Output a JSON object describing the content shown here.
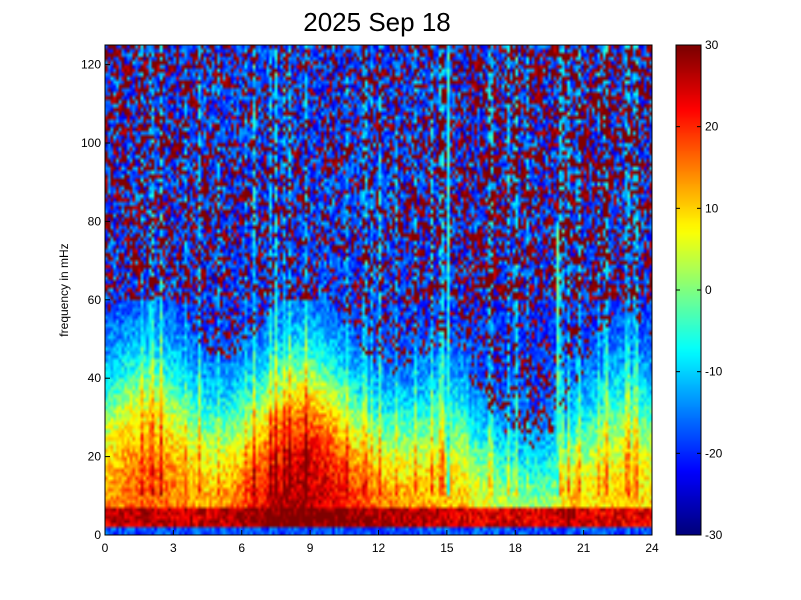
{
  "chart_data": {
    "type": "heatmap",
    "title": "2025 Sep 18",
    "xlabel": "",
    "ylabel": "frequency in mHz",
    "xlim": [
      0,
      24
    ],
    "ylim": [
      0,
      125
    ],
    "x_ticks": [
      "0",
      "3",
      "6",
      "9",
      "12",
      "15",
      "18",
      "21",
      "24"
    ],
    "y_ticks": [
      "0",
      "20",
      "40",
      "60",
      "80",
      "100",
      "120"
    ],
    "colorbar": {
      "colormap": "jet",
      "range": [
        -30,
        30
      ],
      "ticks": [
        "30",
        "20",
        "10",
        "0",
        "-10",
        "-20",
        "-30"
      ]
    },
    "description_values": {
      "x_unit": "hours",
      "grid": false
    }
  }
}
